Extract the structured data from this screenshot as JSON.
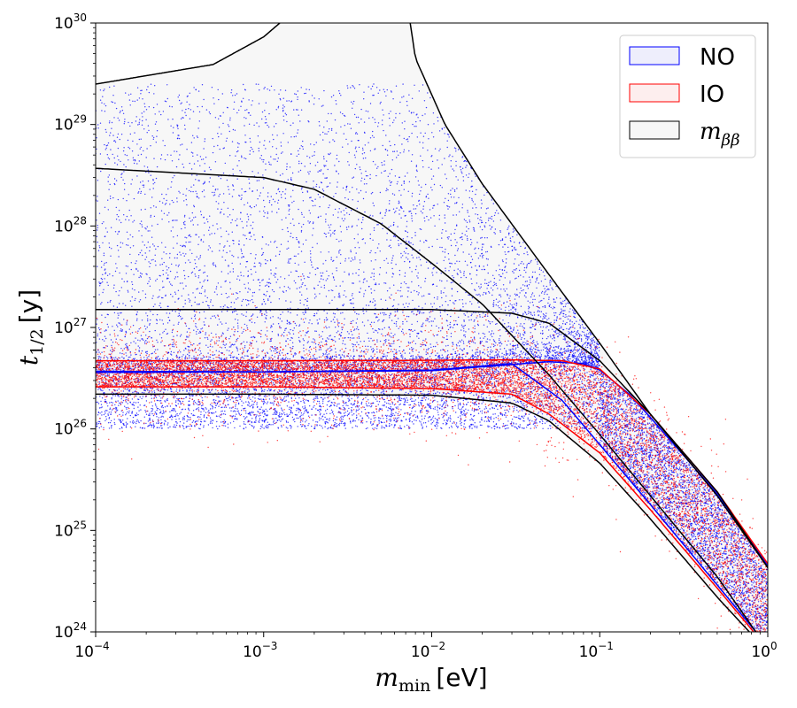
{
  "chart_data": {
    "type": "line",
    "xscale": "log",
    "yscale": "log",
    "xlim": [
      0.0001,
      1
    ],
    "ylim": [
      1e+24,
      1e+30
    ],
    "xlabel": "m_min [eV]",
    "xlabel_parts": {
      "main": "m",
      "sub": "min",
      "unit": "[eV]"
    },
    "ylabel": "t_1/2 [y]",
    "ylabel_parts": {
      "main": "t",
      "sub": "1/2",
      "unit": "[y]"
    },
    "x_ticks": [
      {
        "value": 0.0001,
        "base": "10",
        "exp": "−4"
      },
      {
        "value": 0.001,
        "base": "10",
        "exp": "−3"
      },
      {
        "value": 0.01,
        "base": "10",
        "exp": "−2"
      },
      {
        "value": 0.1,
        "base": "10",
        "exp": "−1"
      },
      {
        "value": 1,
        "base": "10",
        "exp": "0"
      }
    ],
    "y_ticks": [
      {
        "value": 1e+24,
        "base": "10",
        "exp": "24"
      },
      {
        "value": 1e+25,
        "base": "10",
        "exp": "25"
      },
      {
        "value": 1e+26,
        "base": "10",
        "exp": "26"
      },
      {
        "value": 1e+27,
        "base": "10",
        "exp": "27"
      },
      {
        "value": 1e+28,
        "base": "10",
        "exp": "28"
      },
      {
        "value": 1e+29,
        "base": "10",
        "exp": "29"
      },
      {
        "value": 1e+30,
        "base": "10",
        "exp": "30"
      }
    ],
    "legend": {
      "placement": "top-right",
      "entries": [
        {
          "label": "NO",
          "edge": "#0000ff",
          "fill": "#eeeefc",
          "style": "plain"
        },
        {
          "label": "IO",
          "edge": "#ff0000",
          "fill": "#fdeeee",
          "style": "plain"
        },
        {
          "label": "m",
          "sub": "ββ",
          "edge": "#000000",
          "fill": "#f7f7f7",
          "style": "math"
        }
      ]
    },
    "series": [
      {
        "name": "NO",
        "color": "#0000ff",
        "style": "band-edge",
        "points": [
          [
            0.0001,
            3.7e+26
          ],
          [
            0.001,
            3.65e+26
          ],
          [
            0.01,
            3.8e+26
          ],
          [
            0.03,
            4.4e+26
          ],
          [
            0.06,
            1.9e+26
          ],
          [
            0.1,
            7e+25
          ],
          [
            0.2,
            1.8e+25
          ],
          [
            0.5,
            2.9e+24
          ],
          [
            1,
            7.2e+23
          ]
        ]
      },
      {
        "name": "NO",
        "color": "#0000ff",
        "style": "band-edge",
        "points": [
          [
            0.0001,
            3.6e+26
          ],
          [
            0.001,
            3.65e+26
          ],
          [
            0.01,
            3.75e+26
          ],
          [
            0.05,
            4.6e+26
          ],
          [
            0.08,
            4.4e+26
          ],
          [
            0.1,
            3.8e+26
          ],
          [
            0.15,
            2.2e+26
          ],
          [
            0.2,
            1.3e+26
          ],
          [
            0.5,
            2.3e+25
          ],
          [
            1,
            4.5e+24
          ]
        ]
      },
      {
        "name": "IO",
        "color": "#ff0000",
        "style": "band-edge",
        "points": [
          [
            0.0001,
            4.7e+26
          ],
          [
            0.001,
            4.7e+26
          ],
          [
            0.01,
            4.75e+26
          ],
          [
            0.03,
            4.8e+26
          ],
          [
            0.06,
            4.7e+26
          ],
          [
            0.1,
            3.9e+26
          ],
          [
            0.2,
            1.4e+26
          ],
          [
            0.5,
            2.4e+25
          ],
          [
            1,
            4.7e+24
          ]
        ]
      },
      {
        "name": "IO",
        "color": "#ff0000",
        "style": "band-edge",
        "points": [
          [
            0.0001,
            2.6e+26
          ],
          [
            0.001,
            2.6e+26
          ],
          [
            0.01,
            2.5e+26
          ],
          [
            0.03,
            2.2e+26
          ],
          [
            0.05,
            1.4e+26
          ],
          [
            0.1,
            5.8e+25
          ],
          [
            0.2,
            1.6e+25
          ],
          [
            0.5,
            2.7e+24
          ],
          [
            1,
            6.8e+23
          ]
        ]
      },
      {
        "name": "mββ",
        "color": "#000000",
        "style": "band-edge",
        "points": [
          [
            0.0001,
            2.5e+29
          ],
          [
            0.0005,
            3.9e+29
          ],
          [
            0.001,
            7.3e+29
          ],
          [
            0.0015,
            1.3e+30
          ],
          [
            0.002,
            2.5e+30
          ]
        ]
      },
      {
        "name": "mββ",
        "color": "#000000",
        "style": "band-edge",
        "points": [
          [
            0.007,
            2e+30
          ],
          [
            0.008,
            4.5e+29
          ],
          [
            0.012,
            1e+29
          ],
          [
            0.02,
            2.6e+28
          ],
          [
            0.05,
            3.3e+27
          ],
          [
            0.1,
            7e+26
          ],
          [
            0.2,
            1.4e+26
          ],
          [
            0.5,
            2.2e+25
          ],
          [
            1,
            4.3e+24
          ]
        ]
      },
      {
        "name": "mββ",
        "color": "#000000",
        "style": "band-edge",
        "points": [
          [
            0.0001,
            3.7e+28
          ],
          [
            0.001,
            3e+28
          ],
          [
            0.002,
            2.3e+28
          ],
          [
            0.005,
            1.05e+28
          ],
          [
            0.01,
            4.3e+27
          ],
          [
            0.02,
            1.7e+27
          ],
          [
            0.05,
            3.4e+26
          ],
          [
            0.1,
            8.8e+25
          ],
          [
            0.2,
            2.2e+25
          ],
          [
            0.5,
            3.5e+24
          ],
          [
            0.85,
            1e+24
          ]
        ]
      },
      {
        "name": "mββ",
        "color": "#000000",
        "style": "band-edge",
        "points": [
          [
            0.0001,
            1.5e+27
          ],
          [
            0.001,
            1.5e+27
          ],
          [
            0.01,
            1.5e+27
          ],
          [
            0.03,
            1.38e+27
          ],
          [
            0.05,
            1.1e+27
          ],
          [
            0.1,
            4.7e+26
          ],
          [
            0.2,
            1.4e+26
          ],
          [
            0.5,
            2.4e+25
          ],
          [
            1,
            4.3e+24
          ]
        ]
      },
      {
        "name": "mββ",
        "color": "#000000",
        "style": "band-edge",
        "points": [
          [
            0.0001,
            2.2e+26
          ],
          [
            0.001,
            2.2e+26
          ],
          [
            0.01,
            2.15e+26
          ],
          [
            0.03,
            1.8e+26
          ],
          [
            0.05,
            1.2e+26
          ],
          [
            0.1,
            4.6e+25
          ],
          [
            0.2,
            1.3e+25
          ],
          [
            0.5,
            2.2e+24
          ],
          [
            0.8,
            9.5e+23
          ]
        ]
      }
    ],
    "scatter": [
      {
        "name": "NO",
        "color": "#0000ff",
        "count": 14000
      },
      {
        "name": "IO",
        "color": "#ff0000",
        "count": 10000
      }
    ]
  }
}
